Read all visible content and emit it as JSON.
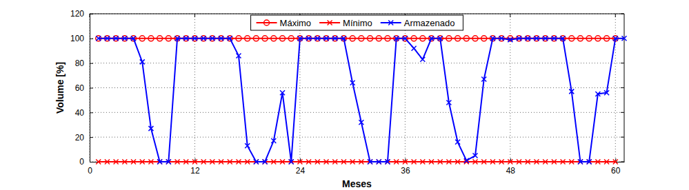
{
  "chart_data": {
    "type": "line",
    "x_label": "Meses",
    "y_label": "Volume [%]",
    "x": [
      1,
      2,
      3,
      4,
      5,
      6,
      7,
      8,
      9,
      10,
      11,
      12,
      13,
      14,
      15,
      16,
      17,
      18,
      19,
      20,
      21,
      22,
      23,
      24,
      25,
      26,
      27,
      28,
      29,
      30,
      31,
      32,
      33,
      34,
      35,
      36,
      37,
      38,
      39,
      40,
      41,
      42,
      43,
      44,
      45,
      46,
      47,
      48,
      49,
      50,
      51,
      52,
      53,
      54,
      55,
      56,
      57,
      58,
      59,
      60,
      61
    ],
    "series": [
      {
        "name": "Máximo",
        "color": "#ff0000",
        "marker": "o",
        "line_style": "solid",
        "values": [
          100,
          100,
          100,
          100,
          100,
          100,
          100,
          100,
          100,
          100,
          100,
          100,
          100,
          100,
          100,
          100,
          100,
          100,
          100,
          100,
          100,
          100,
          100,
          100,
          100,
          100,
          100,
          100,
          100,
          100,
          100,
          100,
          100,
          100,
          100,
          100,
          100,
          100,
          100,
          100,
          100,
          100,
          100,
          100,
          100,
          100,
          100,
          100,
          100,
          100,
          100,
          100,
          100,
          100,
          100,
          100,
          100,
          100,
          100,
          100,
          null
        ]
      },
      {
        "name": "Mínimo",
        "color": "#ff0000",
        "marker": "x",
        "line_style": "solid",
        "values": [
          0,
          0,
          0,
          0,
          0,
          0,
          0,
          0,
          0,
          0,
          0,
          0,
          0,
          0,
          0,
          0,
          0,
          0,
          0,
          0,
          0,
          0,
          0,
          0,
          0,
          0,
          0,
          0,
          0,
          0,
          0,
          0,
          0,
          0,
          0,
          0,
          0,
          0,
          0,
          0,
          0,
          0,
          0,
          0,
          0,
          0,
          0,
          0,
          0,
          0,
          0,
          0,
          0,
          0,
          0,
          0,
          0,
          0,
          0,
          0,
          null
        ]
      },
      {
        "name": "Armazenado",
        "color": "#0000ff",
        "marker": "x",
        "line_style": "solid",
        "values": [
          100,
          100,
          100,
          100,
          100,
          81,
          27,
          0,
          0,
          100,
          100,
          100,
          100,
          100,
          100,
          100,
          86,
          13,
          0,
          0,
          17,
          56,
          0,
          100,
          100,
          100,
          100,
          100,
          100,
          64,
          32,
          0,
          0,
          0,
          100,
          100,
          92,
          83,
          100,
          100,
          48,
          16,
          1,
          5,
          67,
          100,
          100,
          99,
          100,
          100,
          100,
          100,
          100,
          100,
          57,
          0,
          0,
          55,
          56,
          100,
          100
        ]
      }
    ],
    "xlim": [
      0,
      61
    ],
    "xticks": [
      0,
      12,
      24,
      36,
      48,
      60
    ],
    "ylim": [
      0,
      120
    ],
    "yticks": [
      0,
      20,
      40,
      60,
      80,
      100,
      120
    ],
    "grid": true,
    "legend": "top"
  }
}
